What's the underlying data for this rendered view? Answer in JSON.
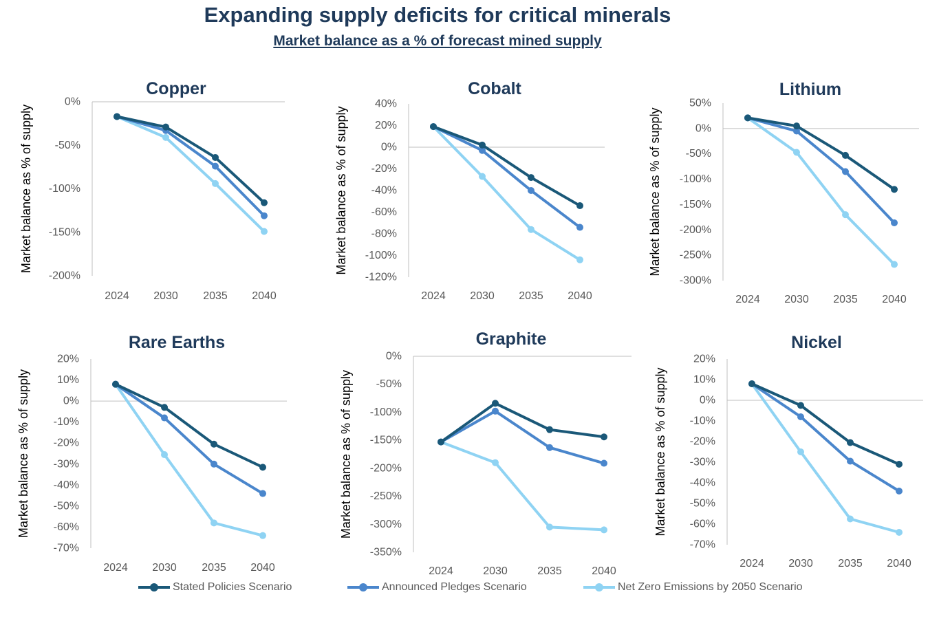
{
  "header": {
    "title": "Expanding supply deficits for critical minerals",
    "subtitle": "Market balance as a % of forecast mined supply"
  },
  "colors": {
    "stated": "#1a5878",
    "announced": "#4a86cc",
    "netzero": "#8fd3f3",
    "axis": "#bfbfbf",
    "tick_text": "#595959",
    "title_text": "#1f3a5a"
  },
  "legend": [
    {
      "key": "stated",
      "label": "Stated Policies Scenario"
    },
    {
      "key": "announced",
      "label": "Announced Pledges Scenario"
    },
    {
      "key": "netzero",
      "label": "Net Zero Emissions by 2050 Scenario"
    }
  ],
  "chart_data": [
    {
      "type": "line",
      "title": "Copper",
      "ylabel": "Market balance as % of supply",
      "categories": [
        "2024",
        "2030",
        "2035",
        "2040"
      ],
      "ylim": [
        -200,
        0
      ],
      "yticks": [
        0,
        -50,
        -100,
        -150,
        -200
      ],
      "yticklabels": [
        "0%",
        "-50%",
        "-100%",
        "-150%",
        "-200%"
      ],
      "series": [
        {
          "key": "stated",
          "values": [
            -17,
            -29,
            -64,
            -116
          ]
        },
        {
          "key": "announced",
          "values": [
            -17,
            -33,
            -74,
            -131
          ]
        },
        {
          "key": "netzero",
          "values": [
            -17,
            -41,
            -94,
            -149
          ]
        }
      ]
    },
    {
      "type": "line",
      "title": "Cobalt",
      "ylabel": "Market balance as % of supply",
      "categories": [
        "2024",
        "2030",
        "2035",
        "2040"
      ],
      "ylim": [
        -120,
        40
      ],
      "yticks": [
        40,
        20,
        0,
        -20,
        -40,
        -60,
        -80,
        -100,
        -120
      ],
      "yticklabels": [
        "40%",
        "20%",
        "0%",
        "-20%",
        "-40%",
        "-60%",
        "-80%",
        "-100%",
        "-120%"
      ],
      "series": [
        {
          "key": "stated",
          "values": [
            19,
            2,
            -28,
            -54
          ]
        },
        {
          "key": "announced",
          "values": [
            19,
            -3,
            -40,
            -74
          ]
        },
        {
          "key": "netzero",
          "values": [
            19,
            -27,
            -76,
            -104
          ]
        }
      ]
    },
    {
      "type": "line",
      "title": "Lithium",
      "ylabel": "Market balance as % of supply",
      "categories": [
        "2024",
        "2030",
        "2035",
        "2040"
      ],
      "ylim": [
        -300,
        50
      ],
      "yticks": [
        50,
        0,
        -50,
        -100,
        -150,
        -200,
        -250,
        -300
      ],
      "yticklabels": [
        "50%",
        "0%",
        "-50%",
        "-100%",
        "-150%",
        "-200%",
        "-250%",
        "-300%"
      ],
      "series": [
        {
          "key": "stated",
          "values": [
            21,
            5,
            -53,
            -120
          ]
        },
        {
          "key": "announced",
          "values": [
            21,
            -5,
            -85,
            -186
          ]
        },
        {
          "key": "netzero",
          "values": [
            21,
            -47,
            -170,
            -268
          ]
        }
      ]
    },
    {
      "type": "line",
      "title": "Rare Earths",
      "ylabel": "Market balance as % of supply",
      "categories": [
        "2024",
        "2030",
        "2035",
        "2040"
      ],
      "ylim": [
        -70,
        20
      ],
      "yticks": [
        20,
        10,
        0,
        -10,
        -20,
        -30,
        -40,
        -50,
        -60,
        -70
      ],
      "yticklabels": [
        "20%",
        "10%",
        "0%",
        "-10%",
        "-20%",
        "-30%",
        "-40%",
        "-50%",
        "-60%",
        "-70%"
      ],
      "series": [
        {
          "key": "stated",
          "values": [
            8,
            -3,
            -20.5,
            -31.5
          ]
        },
        {
          "key": "announced",
          "values": [
            8,
            -8,
            -30,
            -44
          ]
        },
        {
          "key": "netzero",
          "values": [
            8,
            -25.5,
            -58,
            -64
          ]
        }
      ]
    },
    {
      "type": "line",
      "title": "Graphite",
      "ylabel": "Market balance as % of supply",
      "categories": [
        "2024",
        "2030",
        "2035",
        "2040"
      ],
      "ylim": [
        -350,
        0
      ],
      "yticks": [
        0,
        -50,
        -100,
        -150,
        -200,
        -250,
        -300,
        -350
      ],
      "yticklabels": [
        "0%",
        "-50%",
        "-100%",
        "-150%",
        "-200%",
        "-250%",
        "-300%",
        "-350%"
      ],
      "series": [
        {
          "key": "stated",
          "values": [
            -153,
            -84,
            -131,
            -144
          ]
        },
        {
          "key": "announced",
          "values": [
            -153,
            -98,
            -163,
            -191
          ]
        },
        {
          "key": "netzero",
          "values": [
            -153,
            -190,
            -305,
            -310
          ]
        }
      ]
    },
    {
      "type": "line",
      "title": "Nickel",
      "ylabel": "Market balance as % of supply",
      "categories": [
        "2024",
        "2030",
        "2035",
        "2040"
      ],
      "ylim": [
        -70,
        20
      ],
      "yticks": [
        20,
        10,
        0,
        -10,
        -20,
        -30,
        -40,
        -50,
        -60,
        -70
      ],
      "yticklabels": [
        "20%",
        "10%",
        "0%",
        "-10%",
        "-20%",
        "-30%",
        "-40%",
        "-50%",
        "-60%",
        "-70%"
      ],
      "series": [
        {
          "key": "stated",
          "values": [
            8,
            -2.5,
            -20.5,
            -31
          ]
        },
        {
          "key": "announced",
          "values": [
            8,
            -8,
            -29.5,
            -44
          ]
        },
        {
          "key": "netzero",
          "values": [
            8,
            -25,
            -57.5,
            -64
          ]
        }
      ]
    }
  ]
}
